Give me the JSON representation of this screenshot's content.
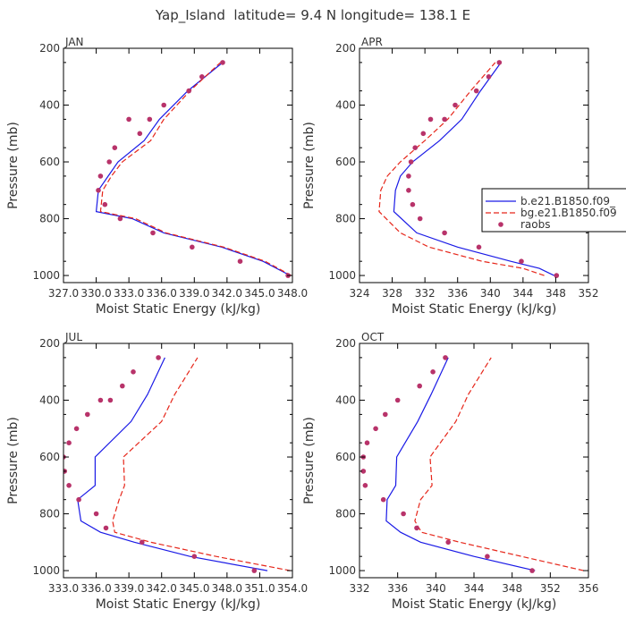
{
  "figure_title": "Yap_Island  latitude= 9.4 N longitude= 138.1 E",
  "colors": {
    "model_b": "#1a1ae6",
    "model_bg": "#e6261a",
    "raobs": "#b8336a",
    "frame": "#000000",
    "text": "#333333"
  },
  "legend": {
    "entries": [
      {
        "label": "b.e21.B1850.f09_",
        "style": "solid",
        "color": "#1a1ae6"
      },
      {
        "label": "bg.e21.B1850.f09",
        "style": "dashed",
        "color": "#e6261a"
      },
      {
        "label": "raobs",
        "style": "dot",
        "color": "#b8336a"
      }
    ]
  },
  "chart_data": [
    {
      "type": "line",
      "label": "JAN",
      "xlabel": "Moist Static Energy (kJ/kg)",
      "ylabel": "Pressure (mb)",
      "xlim": [
        327.0,
        348.0
      ],
      "ylim": [
        1025,
        200
      ],
      "xticks": [
        327.0,
        330.0,
        333.0,
        336.0,
        339.0,
        342.0,
        345.0,
        348.0
      ],
      "xtick_labels": [
        "327.0",
        "330.0",
        "333.0",
        "336.0",
        "339.0",
        "342.0",
        "345.0",
        "348.0"
      ],
      "yticks": [
        200,
        400,
        600,
        800,
        1000
      ],
      "ytick_labels": [
        "200",
        "400",
        "600",
        "800",
        "1000"
      ],
      "series": [
        {
          "name": "b.e21.B1850.f09_",
          "style": "solid",
          "x": [
            347.8,
            345.3,
            341.5,
            336.2,
            333.3,
            330.0,
            330.2,
            331.1,
            332.0,
            334.4,
            335.8,
            338.4,
            341.6
          ],
          "y": [
            1000,
            950,
            900,
            850,
            800,
            775,
            700,
            650,
            600,
            525,
            450,
            350,
            250
          ]
        },
        {
          "name": "bg.e21.B1850.f09",
          "style": "dashed",
          "x": [
            347.9,
            345.5,
            341.7,
            336.4,
            333.6,
            330.4,
            330.6,
            331.4,
            332.4,
            335.0,
            336.2,
            338.6,
            341.4
          ],
          "y": [
            1000,
            950,
            900,
            850,
            800,
            775,
            700,
            650,
            600,
            525,
            450,
            350,
            250
          ]
        },
        {
          "name": "raobs",
          "style": "dot",
          "x": [
            347.6,
            343.2,
            338.8,
            335.2,
            332.2,
            330.8,
            330.2,
            330.4,
            331.2,
            331.7,
            334.0,
            333.0,
            334.9,
            336.2,
            338.5,
            339.7,
            341.6
          ],
          "y": [
            1000,
            950,
            900,
            850,
            800,
            750,
            700,
            650,
            600,
            550,
            500,
            450,
            450,
            400,
            350,
            300,
            250
          ]
        }
      ]
    },
    {
      "type": "line",
      "label": "APR",
      "xlabel": "Moist Static Energy (kJ/kg)",
      "ylabel": "Pressure (mb)",
      "xlim": [
        324,
        352
      ],
      "ylim": [
        1025,
        200
      ],
      "xticks": [
        324,
        328,
        332,
        336,
        340,
        344,
        348,
        352
      ],
      "xtick_labels": [
        "324",
        "328",
        "332",
        "336",
        "340",
        "344",
        "348",
        "352"
      ],
      "yticks": [
        200,
        400,
        600,
        800,
        1000
      ],
      "ytick_labels": [
        "200",
        "400",
        "600",
        "800",
        "1000"
      ],
      "series": [
        {
          "name": "b.e21.B1850.f09_",
          "style": "solid",
          "x": [
            347.8,
            346.0,
            342.5,
            336.0,
            331.0,
            328.2,
            328.4,
            329.0,
            330.5,
            333.8,
            336.5,
            338.8,
            341.3
          ],
          "y": [
            1000,
            975,
            950,
            900,
            850,
            775,
            700,
            650,
            600,
            525,
            450,
            350,
            250
          ]
        },
        {
          "name": "bg.e21.B1850.f09",
          "style": "dashed",
          "x": [
            346.6,
            344.0,
            339.0,
            332.5,
            329.0,
            326.4,
            326.6,
            327.4,
            329.0,
            332.0,
            334.8,
            337.6,
            340.6
          ],
          "y": [
            1000,
            975,
            950,
            900,
            850,
            775,
            700,
            650,
            600,
            525,
            450,
            350,
            250
          ]
        },
        {
          "name": "raobs",
          "style": "dot",
          "x": [
            348.1,
            343.8,
            338.6,
            334.4,
            331.4,
            330.5,
            330.0,
            330.0,
            330.3,
            330.8,
            331.8,
            332.7,
            334.4,
            335.7,
            338.3,
            339.8,
            341.1
          ],
          "y": [
            1000,
            950,
            900,
            850,
            800,
            750,
            700,
            650,
            600,
            550,
            500,
            450,
            450,
            400,
            350,
            300,
            250
          ]
        }
      ]
    },
    {
      "type": "line",
      "label": "JUL",
      "xlabel": "Moist Static Energy (kJ/kg)",
      "ylabel": "Pressure (mb)",
      "xlim": [
        333.0,
        354.0
      ],
      "ylim": [
        1025,
        200
      ],
      "xticks": [
        333.0,
        336.0,
        339.0,
        342.0,
        345.0,
        348.0,
        351.0,
        354.0
      ],
      "xtick_labels": [
        "333.0",
        "336.0",
        "339.0",
        "342.0",
        "345.0",
        "348.0",
        "351.0",
        "354.0"
      ],
      "yticks": [
        200,
        400,
        600,
        800,
        1000
      ],
      "ytick_labels": [
        "200",
        "400",
        "600",
        "800",
        "1000"
      ],
      "series": [
        {
          "name": "b.e21.B1850.f09_",
          "style": "solid",
          "x": [
            351.7,
            344.6,
            339.5,
            336.4,
            334.6,
            334.3,
            335.9,
            335.9,
            339.2,
            340.7,
            342.3
          ],
          "y": [
            1000,
            950,
            900,
            865,
            825,
            750,
            700,
            600,
            475,
            380,
            250
          ]
        },
        {
          "name": "bg.e21.B1850.f09",
          "style": "dashed",
          "x": [
            353.8,
            347.0,
            341.0,
            337.7,
            337.5,
            338.1,
            338.6,
            338.5,
            342.0,
            343.2,
            345.3
          ],
          "y": [
            1000,
            950,
            900,
            865,
            825,
            750,
            700,
            600,
            475,
            380,
            250
          ]
        },
        {
          "name": "raobs",
          "style": "dot",
          "x": [
            350.5,
            345.0,
            340.2,
            336.9,
            336.0,
            334.4,
            333.5,
            333.1,
            333.0,
            333.5,
            334.2,
            335.2,
            336.4,
            337.3,
            338.4,
            339.4,
            341.7
          ],
          "y": [
            1000,
            950,
            900,
            850,
            800,
            750,
            700,
            650,
            600,
            550,
            500,
            450,
            400,
            400,
            350,
            300,
            250
          ]
        }
      ]
    },
    {
      "type": "line",
      "label": "OCT",
      "xlabel": "Moist Static Energy (kJ/kg)",
      "ylabel": "Pressure (mb)",
      "xlim": [
        332,
        356
      ],
      "ylim": [
        1025,
        200
      ],
      "xticks": [
        332,
        336,
        340,
        344,
        348,
        352,
        356
      ],
      "xtick_labels": [
        "332",
        "336",
        "340",
        "344",
        "348",
        "352",
        "356"
      ],
      "yticks": [
        200,
        400,
        600,
        800,
        1000
      ],
      "ytick_labels": [
        "200",
        "400",
        "600",
        "800",
        "1000"
      ],
      "series": [
        {
          "name": "b.e21.B1850.f09_",
          "style": "solid",
          "x": [
            350.4,
            344.0,
            338.4,
            336.3,
            334.8,
            334.9,
            335.8,
            335.9,
            338.1,
            339.5,
            341.3
          ],
          "y": [
            1000,
            950,
            900,
            865,
            825,
            750,
            700,
            600,
            475,
            380,
            250
          ]
        },
        {
          "name": "bg.e21.B1850.f09",
          "style": "dashed",
          "x": [
            355.5,
            349.0,
            342.5,
            338.5,
            337.8,
            338.4,
            339.6,
            339.4,
            342.1,
            343.4,
            345.8
          ],
          "y": [
            1000,
            950,
            900,
            865,
            825,
            750,
            700,
            600,
            475,
            380,
            250
          ]
        },
        {
          "name": "raobs",
          "style": "dot",
          "x": [
            350.1,
            345.4,
            341.3,
            338.0,
            336.6,
            334.5,
            332.6,
            332.4,
            332.4,
            332.8,
            333.7,
            334.7,
            336.0,
            338.3,
            339.7,
            341.0
          ],
          "y": [
            1000,
            950,
            900,
            850,
            800,
            750,
            700,
            650,
            600,
            550,
            500,
            450,
            400,
            350,
            300,
            250
          ]
        }
      ]
    }
  ]
}
